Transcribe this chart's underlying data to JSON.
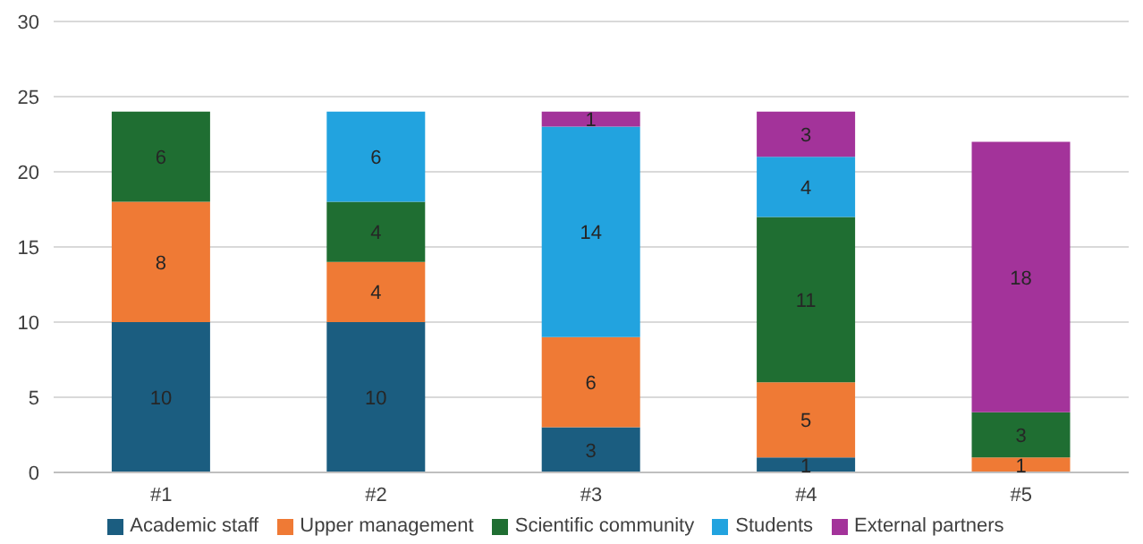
{
  "chart_data": {
    "type": "bar",
    "stacked": true,
    "categories": [
      "#1",
      "#2",
      "#3",
      "#4",
      "#5"
    ],
    "series": [
      {
        "name": "Academic staff",
        "color": "#1b5d80",
        "values": [
          10,
          10,
          3,
          1,
          null
        ],
        "value_labels": [
          "10",
          "10",
          "3",
          "1",
          null
        ]
      },
      {
        "name": "Upper management",
        "color": "#ef7a35",
        "values": [
          8,
          4,
          6,
          5,
          1
        ],
        "value_labels": [
          "8",
          "4",
          "6",
          "5",
          "1"
        ]
      },
      {
        "name": "Scientific community",
        "color": "#1f6e32",
        "values": [
          6,
          4,
          null,
          11,
          3
        ],
        "value_labels": [
          "6",
          "4",
          null,
          "11",
          "3"
        ]
      },
      {
        "name": "Students",
        "color": "#22a3df",
        "values": [
          null,
          6,
          14,
          4,
          null
        ],
        "value_labels": [
          null,
          "6",
          "14",
          "4",
          null
        ]
      },
      {
        "name": "External partners",
        "color": "#a3339a",
        "values": [
          null,
          null,
          1,
          3,
          18
        ],
        "value_labels": [
          null,
          null,
          "1",
          "3",
          "18"
        ]
      }
    ],
    "ylim": [
      0,
      30
    ],
    "yticks": [
      0,
      5,
      10,
      15,
      20,
      25,
      30
    ],
    "grid": "y",
    "legend": "bottom"
  }
}
